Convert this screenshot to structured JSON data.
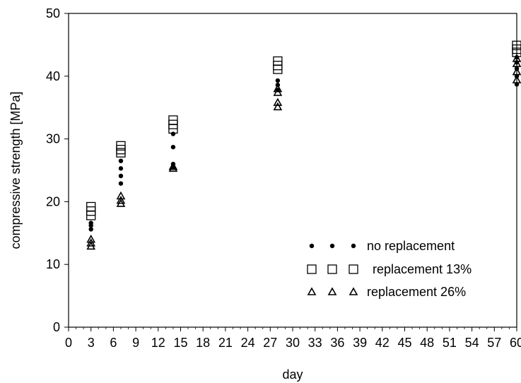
{
  "chart_data": {
    "type": "scatter",
    "title": "",
    "xlabel": "day",
    "ylabel": "compressive strength [MPa]",
    "xlim": [
      0,
      60
    ],
    "ylim": [
      0,
      50
    ],
    "x_ticks": [
      0,
      3,
      6,
      9,
      12,
      15,
      18,
      21,
      24,
      27,
      30,
      33,
      36,
      39,
      42,
      45,
      48,
      51,
      54,
      57,
      60
    ],
    "y_ticks": [
      0,
      10,
      20,
      30,
      40,
      50
    ],
    "grid": false,
    "legend_position": "lower-right",
    "series": [
      {
        "name": "no replacement",
        "marker": "filled-circle",
        "color": "#000000",
        "points": [
          [
            3,
            15.6
          ],
          [
            3,
            16.2
          ],
          [
            3,
            16.6
          ],
          [
            7,
            22.9
          ],
          [
            7,
            24.1
          ],
          [
            7,
            25.3
          ],
          [
            7,
            26.5
          ],
          [
            14,
            25.5
          ],
          [
            14,
            26.0
          ],
          [
            14,
            28.7
          ],
          [
            14,
            30.8
          ],
          [
            28,
            37.8
          ],
          [
            28,
            38.6
          ],
          [
            28,
            39.3
          ],
          [
            60,
            38.7
          ],
          [
            60,
            40.0
          ],
          [
            60,
            41.2
          ],
          [
            60,
            42.2
          ],
          [
            60,
            43.0
          ]
        ]
      },
      {
        "name": "replacement 13%",
        "marker": "open-square",
        "color": "#000000",
        "points": [
          [
            3,
            17.8
          ],
          [
            3,
            18.5
          ],
          [
            3,
            19.2
          ],
          [
            7,
            27.8
          ],
          [
            7,
            28.3
          ],
          [
            7,
            28.9
          ],
          [
            14,
            31.6
          ],
          [
            14,
            32.3
          ],
          [
            14,
            33.0
          ],
          [
            28,
            41.1
          ],
          [
            28,
            41.7
          ],
          [
            28,
            42.4
          ],
          [
            60,
            43.8
          ],
          [
            60,
            44.3
          ],
          [
            60,
            44.9
          ]
        ]
      },
      {
        "name": "replacement 26%",
        "marker": "open-triangle",
        "color": "#000000",
        "points": [
          [
            3,
            12.9
          ],
          [
            3,
            13.4
          ],
          [
            3,
            14.0
          ],
          [
            7,
            19.7
          ],
          [
            7,
            20.2
          ],
          [
            7,
            20.9
          ],
          [
            14,
            25.3
          ],
          [
            14,
            25.6
          ],
          [
            28,
            35.1
          ],
          [
            28,
            35.8
          ],
          [
            28,
            37.4
          ],
          [
            28,
            38.0
          ],
          [
            60,
            39.4
          ],
          [
            60,
            40.7
          ],
          [
            60,
            42.0
          ],
          [
            60,
            42.8
          ]
        ]
      }
    ]
  }
}
